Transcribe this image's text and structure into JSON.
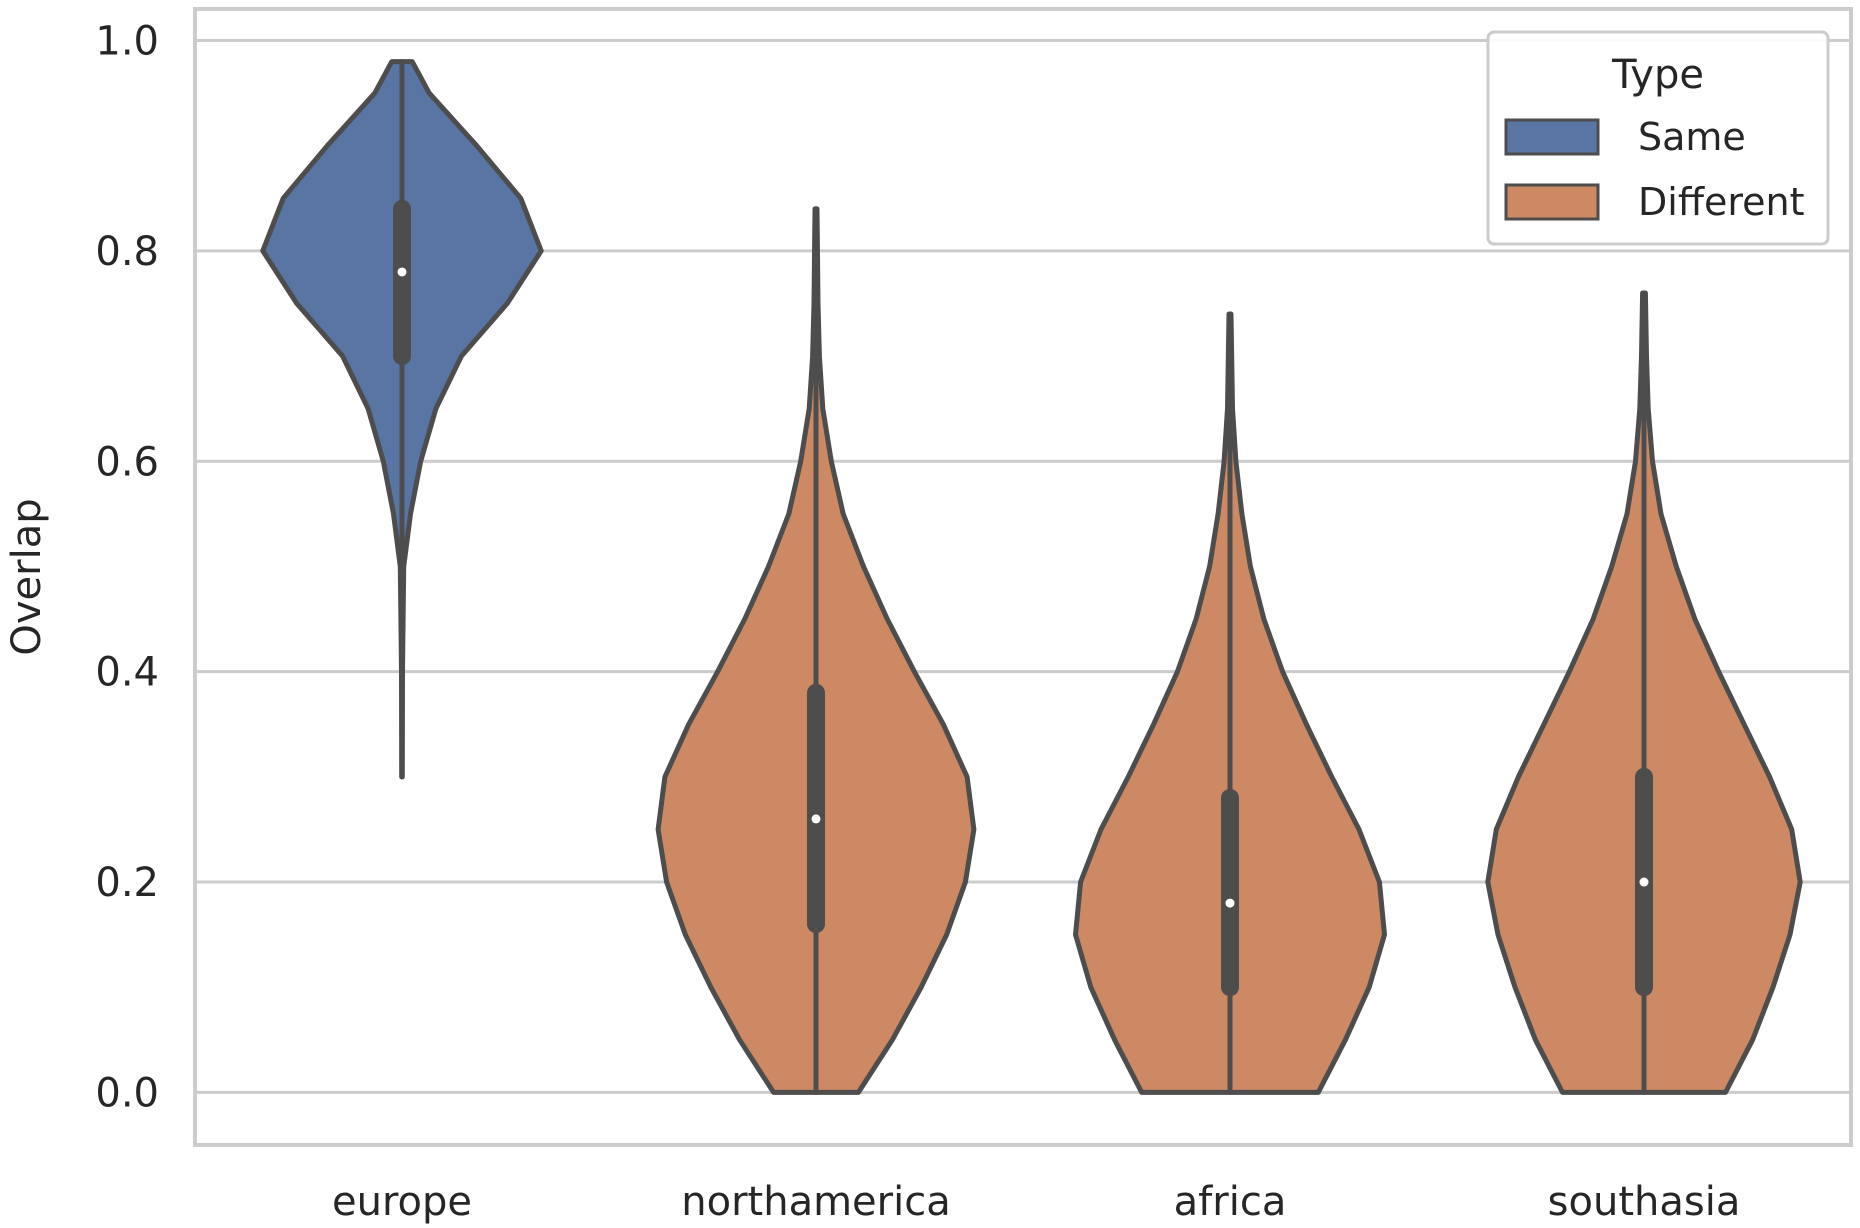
{
  "chart_data": {
    "type": "violin",
    "title": "",
    "xlabel": "",
    "ylabel": "Overlap",
    "ylim": [
      -0.05,
      1.03
    ],
    "yticks": [
      0.0,
      0.2,
      0.4,
      0.6,
      0.8,
      1.0
    ],
    "ytick_labels": [
      "0.0",
      "0.2",
      "0.4",
      "0.6",
      "0.8",
      "1.0"
    ],
    "categories": [
      "europe",
      "northamerica",
      "africa",
      "southasia"
    ],
    "grid": "horizontal",
    "legend": {
      "title": "Type",
      "placement": "top-right",
      "entries": [
        {
          "label": "Same",
          "color": "#5875a4"
        },
        {
          "label": "Different",
          "color": "#cc8963"
        }
      ]
    },
    "series": [
      {
        "category": "europe",
        "type": "Same",
        "color": "#5875a4",
        "min": 0.3,
        "max": 0.98,
        "q1": 0.7,
        "median": 0.78,
        "q3": 0.84,
        "whisker_low": 0.5,
        "whisker_high": 0.98,
        "density": [
          [
            0.3,
            0.002
          ],
          [
            0.4,
            0.003
          ],
          [
            0.5,
            0.01
          ],
          [
            0.55,
            0.05
          ],
          [
            0.6,
            0.11
          ],
          [
            0.65,
            0.2
          ],
          [
            0.7,
            0.35
          ],
          [
            0.75,
            0.62
          ],
          [
            0.8,
            0.82
          ],
          [
            0.85,
            0.7
          ],
          [
            0.9,
            0.44
          ],
          [
            0.95,
            0.16
          ],
          [
            0.98,
            0.06
          ]
        ]
      },
      {
        "category": "northamerica",
        "type": "Different",
        "color": "#cc8963",
        "min": 0.0,
        "max": 0.84,
        "q1": 0.16,
        "median": 0.26,
        "q3": 0.38,
        "whisker_low": 0.0,
        "whisker_high": 0.67,
        "density": [
          [
            0,
            0.25
          ],
          [
            0.05,
            0.45
          ],
          [
            0.1,
            0.62
          ],
          [
            0.15,
            0.77
          ],
          [
            0.2,
            0.88
          ],
          [
            0.25,
            0.93
          ],
          [
            0.3,
            0.89
          ],
          [
            0.35,
            0.75
          ],
          [
            0.4,
            0.58
          ],
          [
            0.45,
            0.42
          ],
          [
            0.5,
            0.28
          ],
          [
            0.55,
            0.16
          ],
          [
            0.6,
            0.09
          ],
          [
            0.65,
            0.04
          ],
          [
            0.7,
            0.02
          ],
          [
            0.75,
            0.012
          ],
          [
            0.84,
            0.006
          ]
        ]
      },
      {
        "category": "africa",
        "type": "Different",
        "color": "#cc8963",
        "min": 0.0,
        "max": 0.74,
        "q1": 0.1,
        "median": 0.18,
        "q3": 0.28,
        "whisker_low": 0.0,
        "whisker_high": 0.54,
        "density": [
          [
            0,
            0.52
          ],
          [
            0.05,
            0.68
          ],
          [
            0.1,
            0.82
          ],
          [
            0.15,
            0.91
          ],
          [
            0.2,
            0.88
          ],
          [
            0.25,
            0.76
          ],
          [
            0.3,
            0.6
          ],
          [
            0.35,
            0.45
          ],
          [
            0.4,
            0.31
          ],
          [
            0.45,
            0.2
          ],
          [
            0.5,
            0.12
          ],
          [
            0.55,
            0.07
          ],
          [
            0.6,
            0.035
          ],
          [
            0.65,
            0.015
          ],
          [
            0.74,
            0.006
          ]
        ]
      },
      {
        "category": "southasia",
        "type": "Different",
        "color": "#cc8963",
        "min": 0.0,
        "max": 0.76,
        "q1": 0.1,
        "median": 0.2,
        "q3": 0.3,
        "whisker_low": 0.0,
        "whisker_high": 0.6,
        "density": [
          [
            0,
            0.48
          ],
          [
            0.05,
            0.64
          ],
          [
            0.1,
            0.76
          ],
          [
            0.15,
            0.86
          ],
          [
            0.2,
            0.92
          ],
          [
            0.25,
            0.87
          ],
          [
            0.3,
            0.74
          ],
          [
            0.35,
            0.59
          ],
          [
            0.4,
            0.44
          ],
          [
            0.45,
            0.3
          ],
          [
            0.5,
            0.19
          ],
          [
            0.55,
            0.1
          ],
          [
            0.6,
            0.05
          ],
          [
            0.65,
            0.025
          ],
          [
            0.7,
            0.015
          ],
          [
            0.76,
            0.008
          ]
        ]
      }
    ]
  }
}
